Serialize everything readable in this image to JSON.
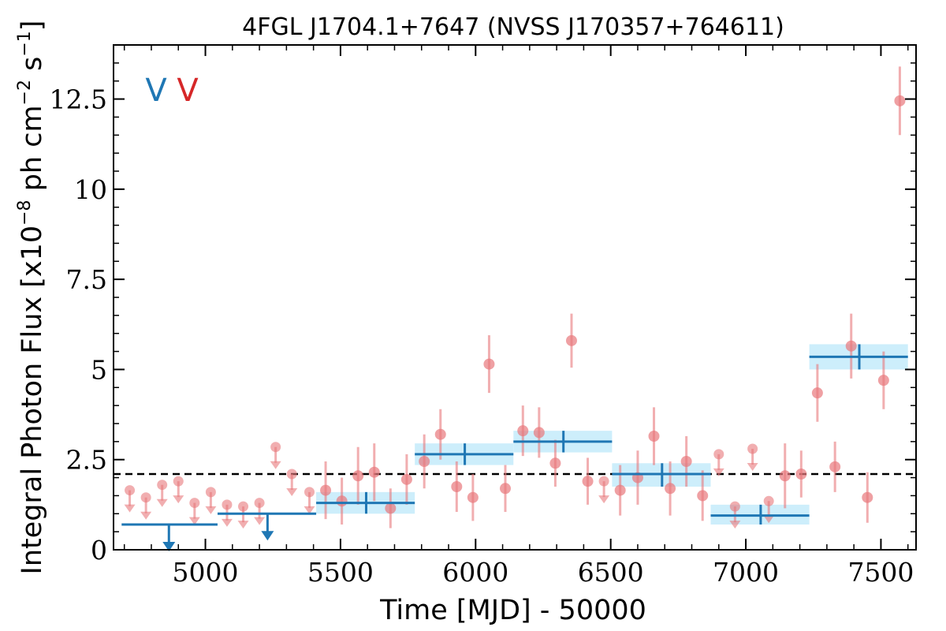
{
  "chart_data": {
    "type": "scatter",
    "title": "4FGL J1704.1+7647 (NVSS J170357+764611)",
    "xlabel": "Time [MJD] - 50000",
    "ylabel": "Integral Photon Flux [x10",
    "ylabel_exp1": "−8",
    "ylabel_mid": " ph cm",
    "ylabel_exp2": "−2",
    "ylabel_mid2": " s",
    "ylabel_exp3": "−1",
    "ylabel_end": "]",
    "xlim": [
      4660,
      7630
    ],
    "ylim": [
      0,
      14
    ],
    "x_ticks": [
      5000,
      5500,
      6000,
      6500,
      7000,
      7500
    ],
    "x_tick_labels": [
      "5000",
      "5500",
      "6000",
      "6500",
      "7000",
      "7500"
    ],
    "y_ticks": [
      0,
      2.5,
      5,
      7.5,
      10,
      12.5
    ],
    "y_tick_labels": [
      "0",
      "2.5",
      "5",
      "7.5",
      "10",
      "12.5"
    ],
    "mean_flux": 2.1,
    "markers": [
      {
        "label": "V",
        "color": "#1f77b4"
      },
      {
        "label": "V",
        "color": "#d62728"
      }
    ],
    "colors": {
      "short_bins": "#e8787c",
      "long_bins": "#1f77b4",
      "long_band": "#cdeefb",
      "mean_line": "#000000"
    },
    "series": [
      {
        "kind": "short-timescale detections",
        "points": [
          {
            "x": 5445,
            "y": 1.65,
            "err": 0.8
          },
          {
            "x": 5505,
            "y": 1.35,
            "err": 0.65
          },
          {
            "x": 5565,
            "y": 2.05,
            "err": 0.8
          },
          {
            "x": 5625,
            "y": 2.15,
            "err": 0.8
          },
          {
            "x": 5685,
            "y": 1.15,
            "err": 0.55
          },
          {
            "x": 5745,
            "y": 1.95,
            "err": 0.7
          },
          {
            "x": 5810,
            "y": 2.45,
            "err": 0.75
          },
          {
            "x": 5870,
            "y": 3.2,
            "err": 0.7
          },
          {
            "x": 5930,
            "y": 1.75,
            "err": 0.7
          },
          {
            "x": 5990,
            "y": 1.45,
            "err": 0.65
          },
          {
            "x": 6050,
            "y": 5.15,
            "err": 0.8
          },
          {
            "x": 6110,
            "y": 1.7,
            "err": 0.65
          },
          {
            "x": 6175,
            "y": 3.3,
            "err": 0.7
          },
          {
            "x": 6235,
            "y": 3.25,
            "err": 0.7
          },
          {
            "x": 6295,
            "y": 2.4,
            "err": 0.65
          },
          {
            "x": 6355,
            "y": 5.8,
            "err": 0.75
          },
          {
            "x": 6415,
            "y": 1.9,
            "err": 0.65
          },
          {
            "x": 6535,
            "y": 1.65,
            "err": 0.7
          },
          {
            "x": 6600,
            "y": 2.0,
            "err": 0.75
          },
          {
            "x": 6660,
            "y": 3.15,
            "err": 0.8
          },
          {
            "x": 6720,
            "y": 1.7,
            "err": 0.75
          },
          {
            "x": 6780,
            "y": 2.45,
            "err": 0.7
          },
          {
            "x": 6840,
            "y": 1.5,
            "err": 0.7
          },
          {
            "x": 7145,
            "y": 2.05,
            "err": 0.9
          },
          {
            "x": 7205,
            "y": 2.1,
            "err": 0.65
          },
          {
            "x": 7265,
            "y": 4.35,
            "err": 0.8
          },
          {
            "x": 7330,
            "y": 2.3,
            "err": 0.7
          },
          {
            "x": 7390,
            "y": 5.65,
            "err": 0.9
          },
          {
            "x": 7450,
            "y": 1.45,
            "err": 0.7
          },
          {
            "x": 7510,
            "y": 4.7,
            "err": 0.8
          },
          {
            "x": 7570,
            "y": 12.45,
            "err": 0.95
          }
        ]
      },
      {
        "kind": "short-timescale upper limits",
        "points": [
          {
            "x": 4720,
            "y": 1.65
          },
          {
            "x": 4780,
            "y": 1.45
          },
          {
            "x": 4840,
            "y": 1.8
          },
          {
            "x": 4900,
            "y": 1.9
          },
          {
            "x": 4960,
            "y": 1.3
          },
          {
            "x": 5020,
            "y": 1.6
          },
          {
            "x": 5080,
            "y": 1.25
          },
          {
            "x": 5140,
            "y": 1.2
          },
          {
            "x": 5200,
            "y": 1.3
          },
          {
            "x": 5260,
            "y": 2.85
          },
          {
            "x": 5320,
            "y": 2.1
          },
          {
            "x": 5385,
            "y": 1.6
          },
          {
            "x": 6475,
            "y": 1.9
          },
          {
            "x": 6900,
            "y": 2.65
          },
          {
            "x": 6960,
            "y": 1.2
          },
          {
            "x": 7025,
            "y": 2.8
          },
          {
            "x": 7085,
            "y": 1.35
          }
        ]
      },
      {
        "kind": "long-timescale detections",
        "bins": [
          {
            "x0": 5410,
            "x1": 5775,
            "x": 5595,
            "y": 1.3,
            "lo": 1.0,
            "hi": 1.6
          },
          {
            "x0": 5775,
            "x1": 6140,
            "x": 5960,
            "y": 2.65,
            "lo": 2.35,
            "hi": 2.95
          },
          {
            "x0": 6140,
            "x1": 6505,
            "x": 6325,
            "y": 3.0,
            "lo": 2.7,
            "hi": 3.3
          },
          {
            "x0": 6505,
            "x1": 6870,
            "x": 6690,
            "y": 2.1,
            "lo": 1.75,
            "hi": 2.4
          },
          {
            "x0": 6870,
            "x1": 7235,
            "x": 7055,
            "y": 0.95,
            "lo": 0.7,
            "hi": 1.25
          },
          {
            "x0": 7235,
            "x1": 7600,
            "x": 7420,
            "y": 5.35,
            "lo": 5.0,
            "hi": 5.7
          }
        ]
      },
      {
        "kind": "long-timescale upper limits",
        "bins": [
          {
            "x0": 4690,
            "x1": 5045,
            "x": 4865,
            "y": 0.7
          },
          {
            "x0": 5045,
            "x1": 5410,
            "x": 5230,
            "y": 1.0
          }
        ]
      }
    ],
    "grid": false,
    "legend": "none"
  }
}
